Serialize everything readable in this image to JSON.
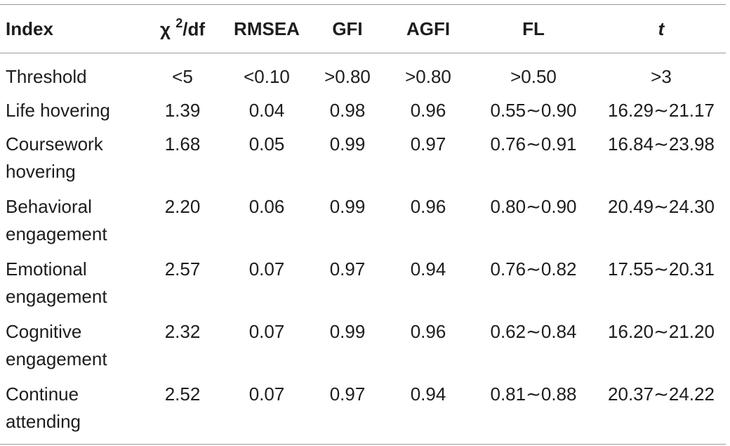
{
  "table": {
    "headers": {
      "index": "Index",
      "chi_prefix": "χ ",
      "chi_sup": "2",
      "chi_suffix": "/df",
      "rmsea": "RMSEA",
      "gfi": "GFI",
      "agfi": "AGFI",
      "fl": "FL",
      "t": "t"
    },
    "rows": [
      {
        "label": "Threshold",
        "chi": "<5",
        "rmsea": "<0.10",
        "gfi": ">0.80",
        "agfi": ">0.80",
        "fl": ">0.50",
        "t": ">3"
      },
      {
        "label": "Life hovering",
        "chi": "1.39",
        "rmsea": "0.04",
        "gfi": "0.98",
        "agfi": "0.96",
        "fl": "0.55∼0.90",
        "t": "16.29∼21.17"
      },
      {
        "label": "Coursework hovering",
        "chi": "1.68",
        "rmsea": "0.05",
        "gfi": "0.99",
        "agfi": "0.97",
        "fl": "0.76∼0.91",
        "t": "16.84∼23.98"
      },
      {
        "label": "Behavioral engagement",
        "chi": "2.20",
        "rmsea": "0.06",
        "gfi": "0.99",
        "agfi": "0.96",
        "fl": "0.80∼0.90",
        "t": "20.49∼24.30"
      },
      {
        "label": "Emotional engagement",
        "chi": "2.57",
        "rmsea": "0.07",
        "gfi": "0.97",
        "agfi": "0.94",
        "fl": "0.76∼0.82",
        "t": "17.55∼20.31"
      },
      {
        "label": "Cognitive engagement",
        "chi": "2.32",
        "rmsea": "0.07",
        "gfi": "0.99",
        "agfi": "0.96",
        "fl": "0.62∼0.84",
        "t": "16.20∼21.20"
      },
      {
        "label": "Continue attending",
        "chi": "2.52",
        "rmsea": "0.07",
        "gfi": "0.97",
        "agfi": "0.94",
        "fl": "0.81∼0.88",
        "t": "20.37∼24.22"
      }
    ]
  }
}
